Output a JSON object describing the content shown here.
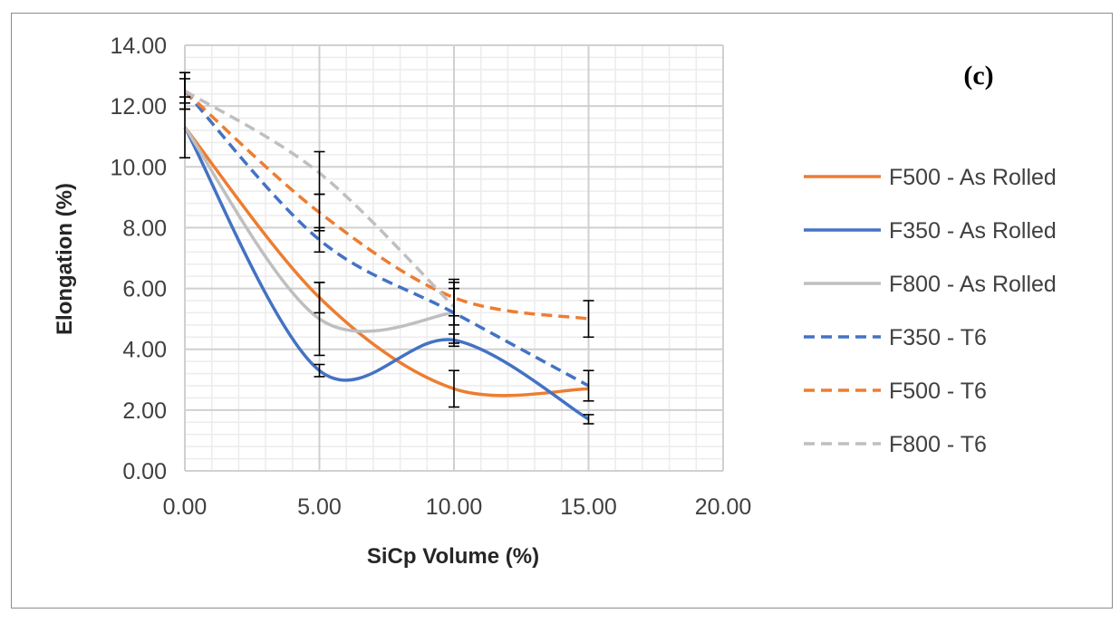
{
  "chart_data": {
    "type": "line",
    "title": "",
    "annotation": "(c)",
    "xlabel": "SiCp Volume (%)",
    "ylabel": "Elongation (%)",
    "xlim": [
      0,
      20
    ],
    "ylim": [
      0,
      14
    ],
    "x_ticks": [
      "0.00",
      "5.00",
      "10.00",
      "15.00",
      "20.00"
    ],
    "y_ticks": [
      "0.00",
      "2.00",
      "4.00",
      "6.00",
      "8.00",
      "10.00",
      "12.00",
      "14.00"
    ],
    "x_minor_step": 1,
    "y_minor_step": 0.4,
    "grid": true,
    "legend_position": "right",
    "x": [
      0,
      5,
      10,
      15
    ],
    "series": [
      {
        "name": "F500 - As Rolled",
        "color": "#ED7D31",
        "dash": false,
        "values": [
          11.3,
          5.7,
          2.7,
          2.7
        ],
        "errors": [
          0,
          0.5,
          0.6,
          0
        ]
      },
      {
        "name": "F350 - As Rolled",
        "color": "#4472C4",
        "dash": false,
        "values": [
          11.3,
          3.3,
          4.3,
          1.7
        ],
        "errors": [
          0,
          0.2,
          0.2,
          0.15
        ]
      },
      {
        "name": "F800 - As Rolled",
        "color": "#BFBFBF",
        "dash": false,
        "values": [
          11.3,
          5.0,
          5.2,
          null
        ],
        "errors": [
          1.0,
          1.2,
          0,
          0
        ]
      },
      {
        "name": "F350 - T6",
        "color": "#4472C4",
        "dash": true,
        "values": [
          12.5,
          7.6,
          5.2,
          2.8
        ],
        "errors": [
          0.6,
          0.4,
          1.0,
          0.5
        ]
      },
      {
        "name": "F500 - T6",
        "color": "#ED7D31",
        "dash": true,
        "values": [
          12.5,
          8.5,
          5.7,
          5.0
        ],
        "errors": [
          0.4,
          0.6,
          0.6,
          0.6
        ]
      },
      {
        "name": "F800 - T6",
        "color": "#BFBFBF",
        "dash": true,
        "values": [
          12.5,
          9.8,
          5.4,
          null
        ],
        "errors": [
          0.6,
          0.7,
          0.6,
          0
        ]
      }
    ]
  }
}
